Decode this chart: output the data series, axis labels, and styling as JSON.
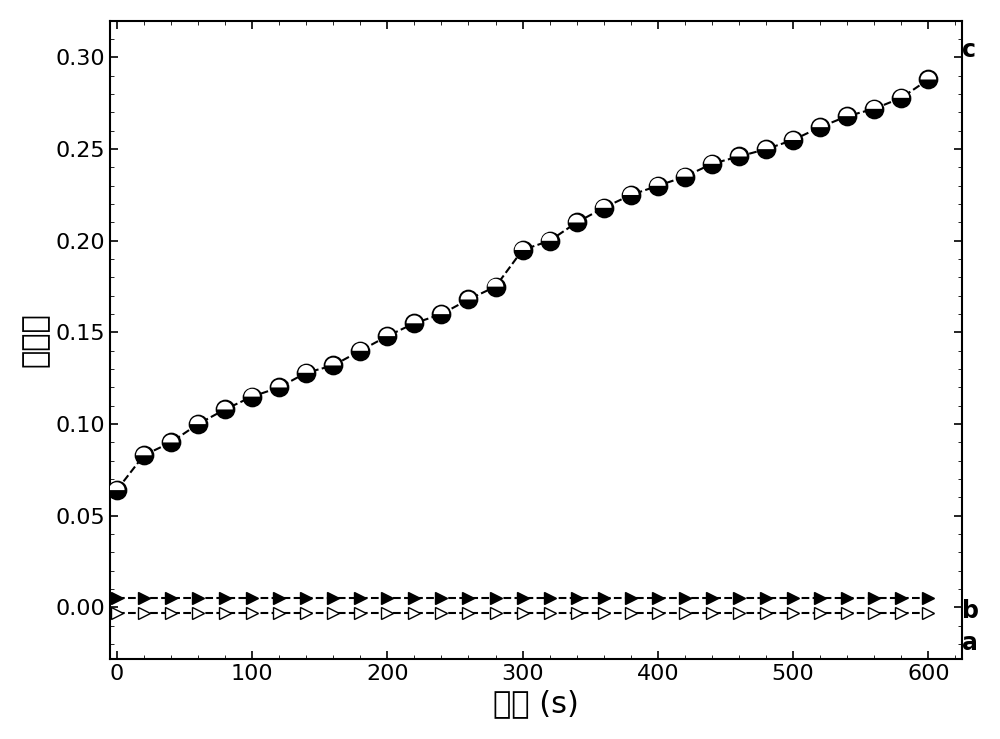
{
  "title": "",
  "xlabel": "时间 (s)",
  "ylabel": "吸光度",
  "xlim": [
    -5,
    625
  ],
  "ylim": [
    -0.028,
    0.32
  ],
  "xticks": [
    0,
    100,
    200,
    300,
    400,
    500,
    600
  ],
  "yticks": [
    0.0,
    0.05,
    0.1,
    0.15,
    0.2,
    0.25,
    0.3
  ],
  "series_c_x": [
    0,
    20,
    40,
    60,
    80,
    100,
    120,
    140,
    160,
    180,
    200,
    220,
    240,
    260,
    280,
    300,
    320,
    340,
    360,
    380,
    400,
    420,
    440,
    460,
    480,
    500,
    520,
    540,
    560,
    580,
    600
  ],
  "series_c_y": [
    0.064,
    0.083,
    0.09,
    0.1,
    0.108,
    0.115,
    0.12,
    0.128,
    0.132,
    0.14,
    0.148,
    0.155,
    0.16,
    0.168,
    0.175,
    0.195,
    0.2,
    0.21,
    0.218,
    0.225,
    0.23,
    0.235,
    0.242,
    0.246,
    0.25,
    0.255,
    0.262,
    0.268,
    0.272,
    0.278,
    0.288
  ],
  "series_b_x": [
    0,
    20,
    40,
    60,
    80,
    100,
    120,
    140,
    160,
    180,
    200,
    220,
    240,
    260,
    280,
    300,
    320,
    340,
    360,
    380,
    400,
    420,
    440,
    460,
    480,
    500,
    520,
    540,
    560,
    580,
    600
  ],
  "series_b_y": [
    0.005,
    0.005,
    0.005,
    0.005,
    0.005,
    0.005,
    0.005,
    0.005,
    0.005,
    0.005,
    0.005,
    0.005,
    0.005,
    0.005,
    0.005,
    0.005,
    0.005,
    0.005,
    0.005,
    0.005,
    0.005,
    0.005,
    0.005,
    0.005,
    0.005,
    0.005,
    0.005,
    0.005,
    0.005,
    0.005,
    0.005
  ],
  "series_a_x": [
    0,
    20,
    40,
    60,
    80,
    100,
    120,
    140,
    160,
    180,
    200,
    220,
    240,
    260,
    280,
    300,
    320,
    340,
    360,
    380,
    400,
    420,
    440,
    460,
    480,
    500,
    520,
    540,
    560,
    580,
    600
  ],
  "series_a_y": [
    -0.003,
    -0.003,
    -0.003,
    -0.003,
    -0.003,
    -0.003,
    -0.003,
    -0.003,
    -0.003,
    -0.003,
    -0.003,
    -0.003,
    -0.003,
    -0.003,
    -0.003,
    -0.003,
    -0.003,
    -0.003,
    -0.003,
    -0.003,
    -0.003,
    -0.003,
    -0.003,
    -0.003,
    -0.003,
    -0.003,
    -0.003,
    -0.003,
    -0.003,
    -0.003,
    -0.003
  ],
  "bg_color": "#ffffff",
  "plot_bg_color": "#ffffff",
  "line_color": "#000000",
  "label_c": "c",
  "label_b": "b",
  "label_a": "a",
  "marker_size_circle": 13,
  "marker_size_triangle": 9,
  "linewidth": 1.5,
  "font_size_tick": 16,
  "font_size_label": 22,
  "font_size_annotation": 17
}
